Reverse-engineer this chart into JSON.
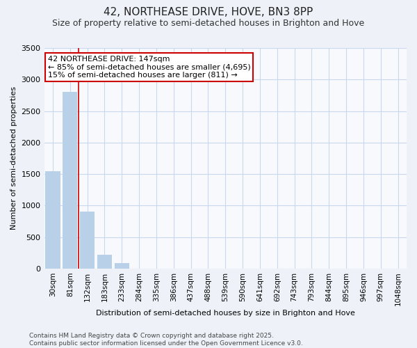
{
  "title": "42, NORTHEASE DRIVE, HOVE, BN3 8PP",
  "subtitle": "Size of property relative to semi-detached houses in Brighton and Hove",
  "xlabel": "Distribution of semi-detached houses by size in Brighton and Hove",
  "ylabel": "Number of semi-detached properties",
  "categories": [
    "30sqm",
    "81sqm",
    "132sqm",
    "183sqm",
    "233sqm",
    "284sqm",
    "335sqm",
    "386sqm",
    "437sqm",
    "488sqm",
    "539sqm",
    "590sqm",
    "641sqm",
    "692sqm",
    "743sqm",
    "793sqm",
    "844sqm",
    "895sqm",
    "946sqm",
    "997sqm",
    "1048sqm"
  ],
  "values": [
    1550,
    2800,
    900,
    215,
    90,
    0,
    0,
    0,
    0,
    0,
    0,
    0,
    0,
    0,
    0,
    0,
    0,
    0,
    0,
    0,
    0
  ],
  "bar_color": "#b8d0e8",
  "property_line_x": 1.5,
  "annotation_text1": "42 NORTHEASE DRIVE: 147sqm",
  "annotation_text2": "← 85% of semi-detached houses are smaller (4,695)",
  "annotation_text3": "15% of semi-detached houses are larger (811) →",
  "annotation_box_edgecolor": "#cc0000",
  "annotation_box_facecolor": "#ffffff",
  "ylim": [
    0,
    3500
  ],
  "yticks": [
    0,
    500,
    1000,
    1500,
    2000,
    2500,
    3000,
    3500
  ],
  "footnote1": "Contains HM Land Registry data © Crown copyright and database right 2025.",
  "footnote2": "Contains public sector information licensed under the Open Government Licence v3.0.",
  "fig_background_color": "#eef2f8",
  "plot_background_color": "#f8f9fc",
  "grid_color": "#c8d8f0",
  "title_fontsize": 11,
  "subtitle_fontsize": 9,
  "axis_label_fontsize": 8,
  "tick_fontsize": 8,
  "xtick_fontsize": 7.5,
  "annotation_fontsize": 8
}
